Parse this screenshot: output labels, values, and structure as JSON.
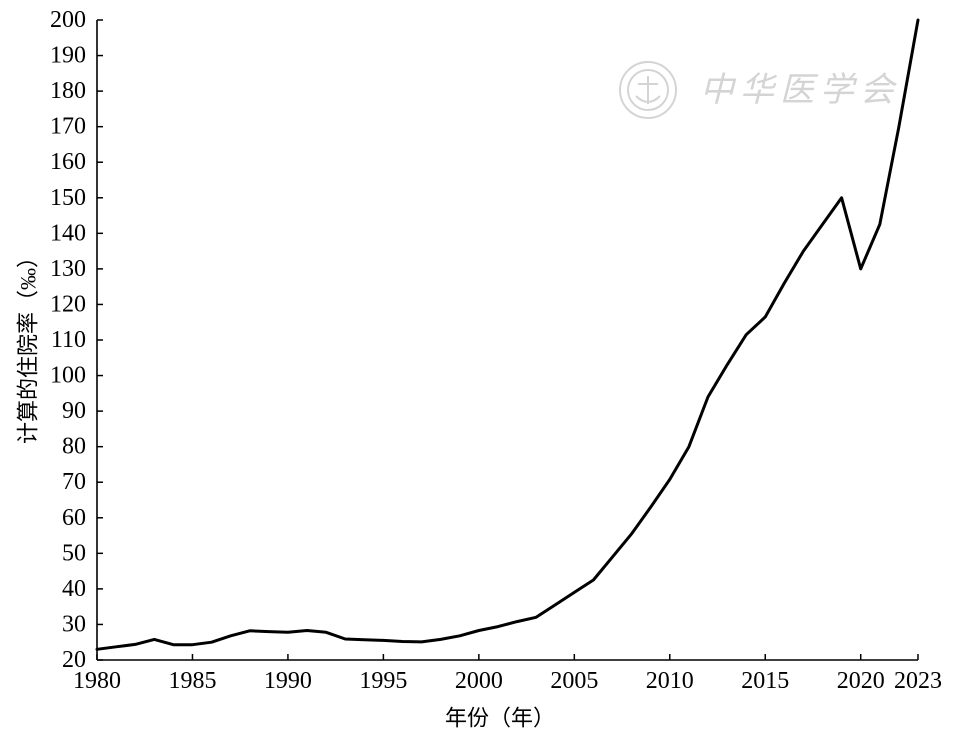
{
  "watermark": {
    "text": "中华医学会",
    "color": "#d4d4d4"
  },
  "chart_data": {
    "type": "line",
    "title": "",
    "xlabel": "年份（年）",
    "ylabel": "计算的住院率（‰）",
    "xlim": [
      1980,
      2023
    ],
    "ylim": [
      20,
      200
    ],
    "xticks": [
      1980,
      1985,
      1990,
      1995,
      2000,
      2005,
      2010,
      2015,
      2020,
      2023
    ],
    "yticks": [
      20,
      30,
      40,
      50,
      60,
      70,
      80,
      90,
      100,
      110,
      120,
      130,
      140,
      150,
      160,
      170,
      180,
      190,
      200
    ],
    "grid": false,
    "legend": "none",
    "series": [
      {
        "color": "#000000",
        "x": [
          1980,
          1981,
          1982,
          1983,
          1984,
          1985,
          1986,
          1987,
          1988,
          1989,
          1990,
          1991,
          1992,
          1993,
          1994,
          1995,
          1996,
          1997,
          1998,
          1999,
          2000,
          2001,
          2002,
          2003,
          2004,
          2005,
          2006,
          2007,
          2008,
          2009,
          2010,
          2011,
          2012,
          2013,
          2014,
          2015,
          2016,
          2017,
          2018,
          2019,
          2020,
          2021,
          2022,
          2023
        ],
        "y": [
          23.0,
          23.7,
          24.4,
          25.8,
          24.3,
          24.3,
          25.0,
          26.8,
          28.2,
          28.0,
          27.8,
          28.3,
          27.8,
          25.9,
          25.7,
          25.5,
          25.2,
          25.1,
          25.8,
          26.8,
          28.3,
          29.4,
          30.8,
          32.0,
          35.5,
          39.0,
          42.5,
          49.0,
          55.5,
          63.0,
          70.8,
          80.0,
          94.0,
          103.0,
          111.5,
          116.5,
          126.0,
          135.0,
          142.5,
          150.0,
          130.0,
          142.5,
          170.0,
          200.0
        ]
      }
    ]
  }
}
